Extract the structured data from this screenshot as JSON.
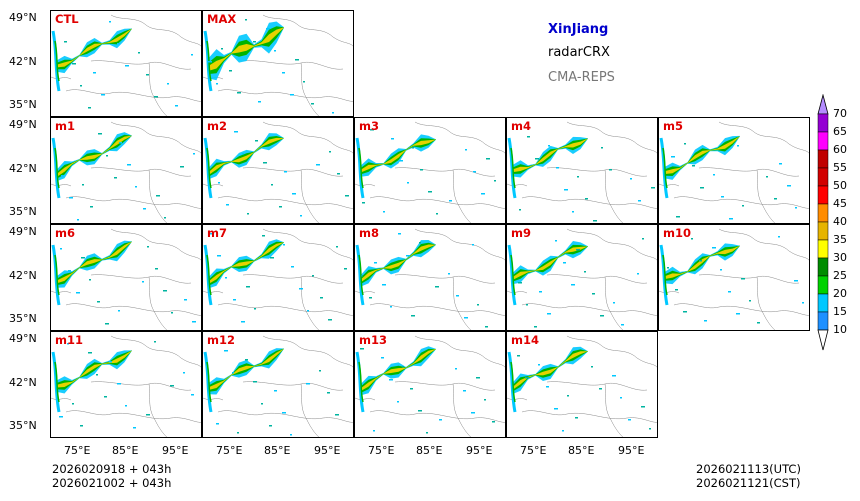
{
  "region": "XinJiang",
  "variable": "radarCRX",
  "system": "CMA-REPS",
  "panels": [
    {
      "label": "CTL",
      "row": 0,
      "col": 0
    },
    {
      "label": "MAX",
      "row": 0,
      "col": 1
    },
    {
      "label": "m1",
      "row": 1,
      "col": 0
    },
    {
      "label": "m2",
      "row": 1,
      "col": 1
    },
    {
      "label": "m3",
      "row": 1,
      "col": 2
    },
    {
      "label": "m4",
      "row": 1,
      "col": 3
    },
    {
      "label": "m5",
      "row": 1,
      "col": 4
    },
    {
      "label": "m6",
      "row": 2,
      "col": 0
    },
    {
      "label": "m7",
      "row": 2,
      "col": 1
    },
    {
      "label": "m8",
      "row": 2,
      "col": 2
    },
    {
      "label": "m9",
      "row": 2,
      "col": 3
    },
    {
      "label": "m10",
      "row": 2,
      "col": 4
    },
    {
      "label": "m11",
      "row": 3,
      "col": 0
    },
    {
      "label": "m12",
      "row": 3,
      "col": 1
    },
    {
      "label": "m13",
      "row": 3,
      "col": 2
    },
    {
      "label": "m14",
      "row": 3,
      "col": 3
    }
  ],
  "lat_ticks": [
    "49°N",
    "42°N",
    "35°N"
  ],
  "lon_ticks": [
    "75°E",
    "85°E",
    "95°E"
  ],
  "colorbar": {
    "levels": [
      "10",
      "15",
      "20",
      "25",
      "30",
      "35",
      "40",
      "45",
      "50",
      "55",
      "60",
      "65",
      "70"
    ],
    "colors": [
      "#1e90ff",
      "#00c8ff",
      "#00d200",
      "#008c00",
      "#ffff00",
      "#e6b400",
      "#ff8c00",
      "#ff0000",
      "#d20000",
      "#c00000",
      "#ff00ff",
      "#9400d3",
      "#b48cff",
      "#ffffff"
    ]
  },
  "init_line1": "2026020918  +  043h",
  "init_line2": "2026021002  +  043h",
  "valid_utc": "2026021113(UTC)",
  "valid_cst": "2026021121(CST)"
}
